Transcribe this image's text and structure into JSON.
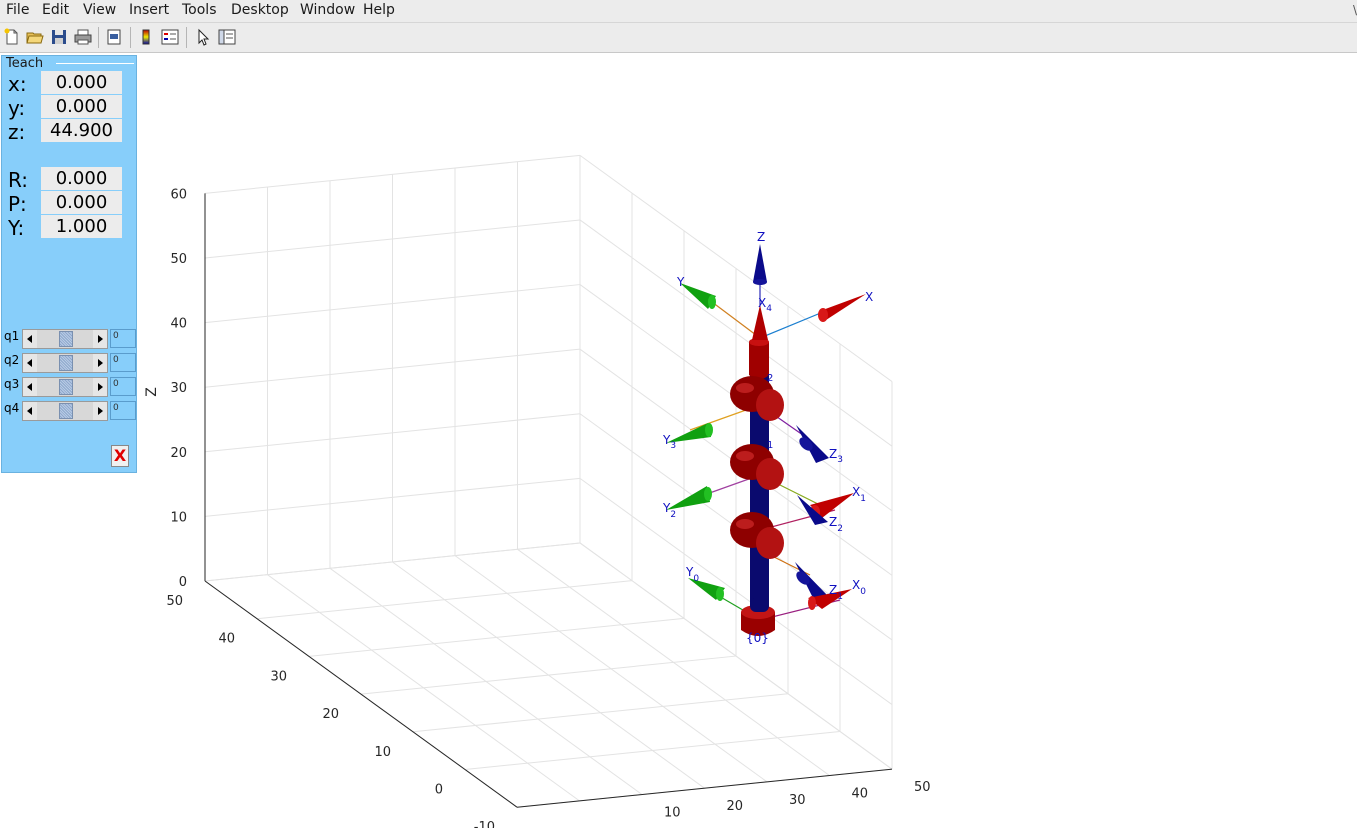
{
  "menu": [
    "File",
    "Edit",
    "View",
    "Insert",
    "Tools",
    "Desktop",
    "Window",
    "Help"
  ],
  "menu_extra": "\\",
  "toolbar_icons": [
    "new-file-icon",
    "open-folder-icon",
    "save-icon",
    "print-icon",
    "print-preview-icon",
    "colorbar-icon",
    "legend-icon",
    "pointer-icon",
    "property-editor-icon"
  ],
  "teach": {
    "title": "Teach",
    "coords": [
      {
        "label": "x:",
        "value": "0.000"
      },
      {
        "label": "y:",
        "value": "0.000"
      },
      {
        "label": "z:",
        "value": "44.900"
      },
      {
        "label": "R:",
        "value": "0.000"
      },
      {
        "label": "P:",
        "value": "0.000"
      },
      {
        "label": "Y:",
        "value": "1.000"
      }
    ],
    "joints": [
      {
        "label": "q1",
        "value": "0",
        "slider_level": 0.5
      },
      {
        "label": "q2",
        "value": "0",
        "slider_level": 0.5
      },
      {
        "label": "q3",
        "value": "0",
        "slider_level": 0.5
      },
      {
        "label": "q4",
        "value": "0",
        "slider_level": 0.5
      }
    ],
    "quit_label": "X"
  },
  "plot": {
    "zlabel": "Z",
    "z_ticks": [
      "60",
      "50",
      "40",
      "30",
      "20",
      "10",
      "0"
    ],
    "y_ticks": [
      "50",
      "40",
      "30",
      "20",
      "10",
      "0",
      "-10"
    ],
    "x_ticks": [
      "50",
      "40",
      "30",
      "20",
      "10"
    ],
    "frame_labels": {
      "world_z": "Z",
      "world_x": "X",
      "world_y": "Y",
      "x4": "X",
      "x4_sub": "4",
      "j2": "2",
      "j1": "1",
      "y3": "Y",
      "y3_sub": "3",
      "z3": "Z",
      "z3_sub": "3",
      "y2": "Y",
      "y2_sub": "2",
      "x1": "X",
      "x1_sub": "1",
      "z2": "Z",
      "z2_sub": "2",
      "y0": "Y",
      "y0_sub": "0",
      "x0": "X",
      "x0_sub": "0",
      "z1": "Z",
      "z1_sub": "1",
      "base": "{0}"
    }
  },
  "colors": {
    "panel": "#87cefa",
    "link": "#00008b",
    "joint": "#b00000",
    "x_axis": "#cc0000",
    "y_axis": "#00aa00",
    "z_axis": "#00008b"
  }
}
